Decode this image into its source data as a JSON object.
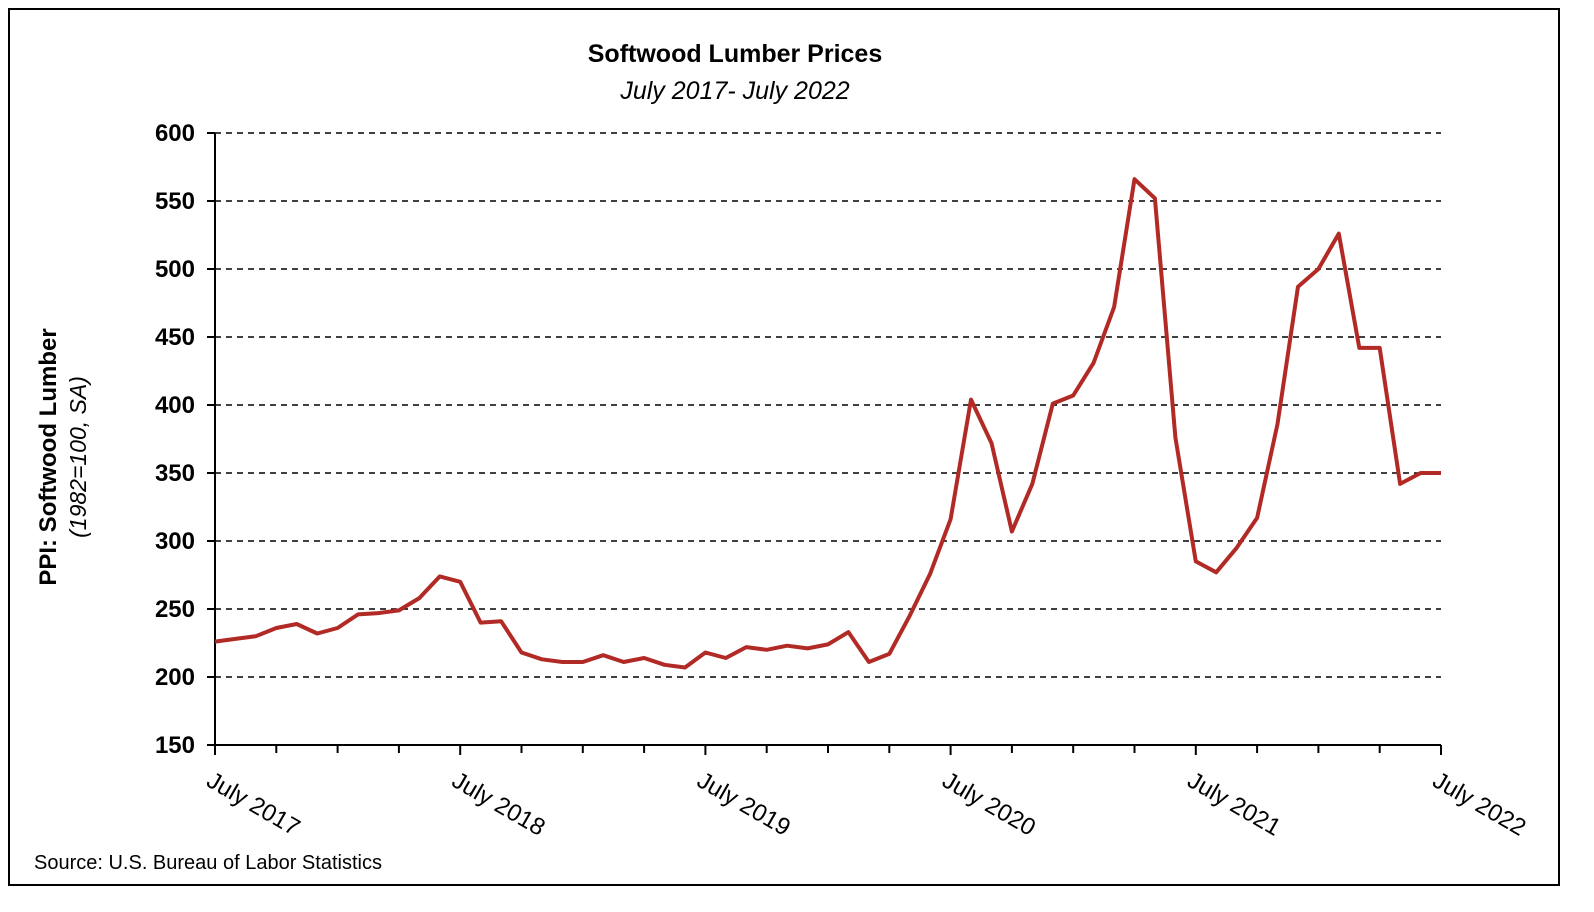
{
  "chart_data": {
    "type": "line",
    "title": "Softwood Lumber Prices",
    "subtitle": "July 2017- July 2022",
    "ylabel": "PPI: Softwood Lumber",
    "ylabel_sub": "(1982=100, SA)",
    "source": "Source: U.S. Bureau of Labor Statistics",
    "ylim": [
      150,
      600
    ],
    "yticks": [
      150,
      200,
      250,
      300,
      350,
      400,
      450,
      500,
      550,
      600
    ],
    "x_tick_labels": [
      "July 2017",
      "July 2018",
      "July 2019",
      "July 2020",
      "July 2021",
      "July 2022"
    ],
    "x_range_months": [
      "July 2017",
      "July 2022"
    ],
    "grid": "horizontal dashed",
    "line_color": "#b22a25",
    "series": [
      {
        "values": [
          226,
          228,
          230,
          236,
          239,
          232,
          236,
          246,
          247,
          249,
          258,
          274,
          270,
          240,
          241,
          218,
          213,
          211,
          211,
          216,
          211,
          214,
          209,
          207,
          218,
          214,
          222,
          220,
          223,
          221,
          224,
          233,
          211,
          217,
          245,
          276,
          316,
          404,
          372,
          307,
          342,
          401,
          407,
          431,
          472,
          566,
          552,
          376,
          285,
          277,
          295,
          317,
          386,
          487,
          500,
          526,
          442,
          442,
          342,
          350,
          350
        ]
      }
    ]
  }
}
